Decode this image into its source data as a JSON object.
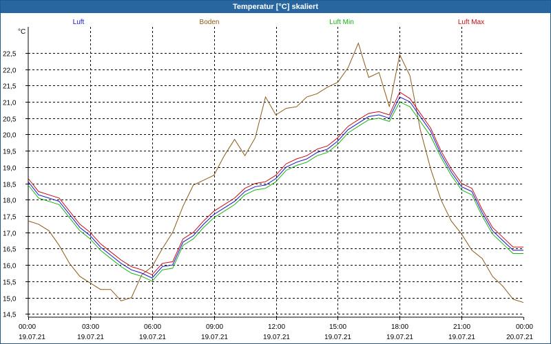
{
  "window": {
    "title": "Temperatur [°C] skaliert"
  },
  "colors": {
    "title_bar": "#2766a0",
    "luft": "#1414c8",
    "boden": "#8b5a14",
    "luft_min": "#14b414",
    "luft_max": "#c80a14"
  },
  "chart_data": {
    "type": "line",
    "title": "Temperatur [°C] skaliert",
    "ylabel": "°C",
    "xlabel": "",
    "ylim": [
      14.4,
      23.3
    ],
    "xlim": [
      "19.07.21 00:00",
      "20.07.21 00:00"
    ],
    "grid": true,
    "legend_placement": "top",
    "y_ticks": [
      "14,5",
      "15,0",
      "15,5",
      "16,0",
      "16,5",
      "17,0",
      "17,5",
      "18,0",
      "18,5",
      "19,0",
      "19,5",
      "20,0",
      "20,5",
      "21,0",
      "21,5",
      "22,0",
      "22,5"
    ],
    "x_ticks": [
      {
        "time": "00:00",
        "date": "19.07.21"
      },
      {
        "time": "03:00",
        "date": "19.07.21"
      },
      {
        "time": "06:00",
        "date": "19.07.21"
      },
      {
        "time": "09:00",
        "date": "19.07.21"
      },
      {
        "time": "12:00",
        "date": "19.07.21"
      },
      {
        "time": "15:00",
        "date": "19.07.21"
      },
      {
        "time": "18:00",
        "date": "19.07.21"
      },
      {
        "time": "21:00",
        "date": "19.07.21"
      },
      {
        "time": "00:00",
        "date": "20.07.21"
      }
    ],
    "x": [
      "00:00",
      "00:30",
      "01:00",
      "01:30",
      "02:00",
      "02:30",
      "03:00",
      "03:30",
      "04:00",
      "04:30",
      "05:00",
      "05:30",
      "06:00",
      "06:30",
      "07:00",
      "07:30",
      "08:00",
      "08:30",
      "09:00",
      "09:30",
      "10:00",
      "10:30",
      "11:00",
      "11:30",
      "12:00",
      "12:30",
      "13:00",
      "13:30",
      "14:00",
      "14:30",
      "15:00",
      "15:30",
      "16:00",
      "16:30",
      "17:00",
      "17:30",
      "18:00",
      "18:30",
      "19:00",
      "19:30",
      "20:00",
      "20:30",
      "21:00",
      "21:30",
      "22:00",
      "22:30",
      "23:00",
      "23:30",
      "23:59"
    ],
    "series": [
      {
        "name": "Luft",
        "values": [
          18.55,
          18.15,
          18.05,
          17.95,
          17.55,
          17.15,
          16.9,
          16.55,
          16.3,
          16.05,
          15.85,
          15.75,
          15.6,
          15.95,
          16.0,
          16.7,
          16.9,
          17.25,
          17.55,
          17.75,
          17.95,
          18.25,
          18.4,
          18.45,
          18.65,
          19.0,
          19.15,
          19.25,
          19.45,
          19.55,
          19.8,
          20.15,
          20.35,
          20.55,
          20.6,
          20.5,
          21.15,
          21.0,
          20.55,
          20.1,
          19.4,
          18.85,
          18.4,
          18.25,
          17.6,
          17.05,
          16.75,
          16.45,
          16.45
        ]
      },
      {
        "name": "Boden",
        "values": [
          17.35,
          17.25,
          17.05,
          16.6,
          16.05,
          15.65,
          15.45,
          15.25,
          15.25,
          14.9,
          15.0,
          15.7,
          15.95,
          16.5,
          17.0,
          17.8,
          18.45,
          18.6,
          18.75,
          19.35,
          19.85,
          19.35,
          19.9,
          21.15,
          20.6,
          20.8,
          20.85,
          21.15,
          21.25,
          21.45,
          21.6,
          22.05,
          22.8,
          21.75,
          21.9,
          20.85,
          22.45,
          21.8,
          20.15,
          18.95,
          18.0,
          17.35,
          16.95,
          16.45,
          16.2,
          15.65,
          15.35,
          14.95,
          14.85
        ]
      },
      {
        "name": "Luft Min",
        "values": [
          18.45,
          18.05,
          17.95,
          17.85,
          17.45,
          17.05,
          16.8,
          16.45,
          16.2,
          15.95,
          15.75,
          15.65,
          15.5,
          15.85,
          15.9,
          16.6,
          16.8,
          17.15,
          17.45,
          17.65,
          17.85,
          18.15,
          18.3,
          18.35,
          18.55,
          18.9,
          19.05,
          19.15,
          19.35,
          19.45,
          19.7,
          20.05,
          20.25,
          20.45,
          20.5,
          20.4,
          21.0,
          20.85,
          20.4,
          19.95,
          19.3,
          18.75,
          18.3,
          18.15,
          17.5,
          16.95,
          16.65,
          16.35,
          16.35
        ]
      },
      {
        "name": "Luft Max",
        "values": [
          18.65,
          18.25,
          18.15,
          18.05,
          17.65,
          17.25,
          17.0,
          16.65,
          16.4,
          16.15,
          15.95,
          15.85,
          15.7,
          16.05,
          16.1,
          16.8,
          17.0,
          17.35,
          17.65,
          17.85,
          18.05,
          18.35,
          18.5,
          18.55,
          18.75,
          19.1,
          19.25,
          19.35,
          19.55,
          19.65,
          19.9,
          20.25,
          20.45,
          20.65,
          20.7,
          20.6,
          21.3,
          21.1,
          20.65,
          20.2,
          19.5,
          18.95,
          18.5,
          18.35,
          17.7,
          17.15,
          16.85,
          16.55,
          16.55
        ]
      }
    ]
  }
}
